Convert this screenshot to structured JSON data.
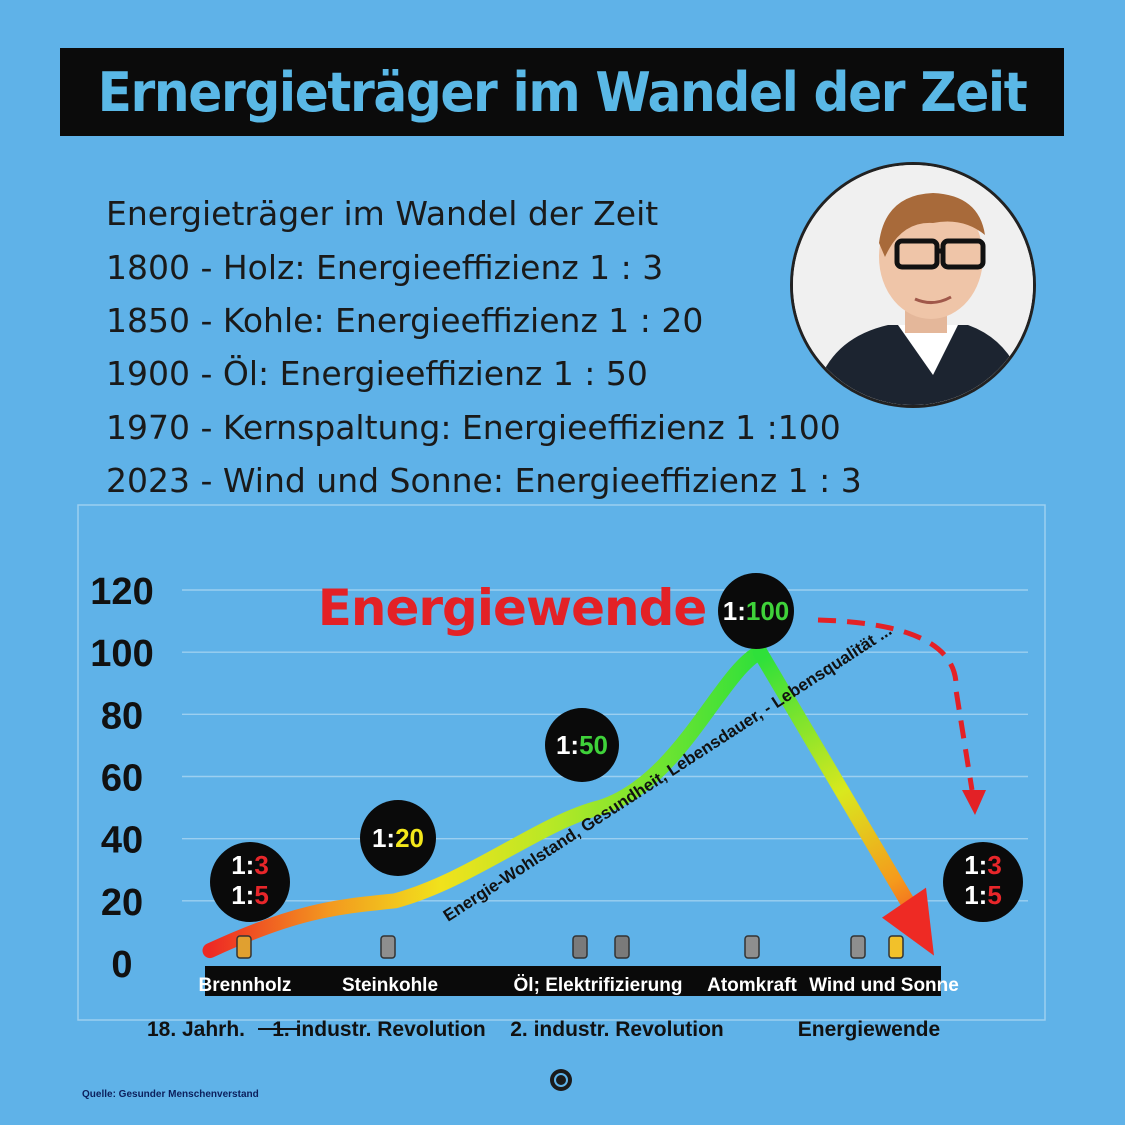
{
  "header": {
    "title": "Ernergieträger im Wandel der Zeit"
  },
  "info": {
    "lines": [
      "Energieträger im Wandel der Zeit",
      "1800 - Holz: Energieeffizienz 1 : 3",
      "1850 - Kohle: Energieeffizienz 1 : 20",
      "1900 - Öl: Energieeffizienz 1 : 50",
      "1970 - Kernspaltung: Energieeffizienz 1 :100",
      "2023 - Wind und Sonne: Energieeffizienz 1 : 3"
    ]
  },
  "chart_data": {
    "type": "line",
    "title": "Energiewende",
    "yticks": [
      "120",
      "100",
      "80",
      "60",
      "40",
      "20",
      "0"
    ],
    "ylim": [
      0,
      120
    ],
    "grid": true,
    "categories": [
      "Brennholz",
      "Steinkohle",
      "Öl; Elektrifizierung",
      "Atomkraft",
      "Wind und Sonne"
    ],
    "series": [
      {
        "values": [
          4,
          20,
          50,
          100,
          3
        ]
      }
    ],
    "line_label_rising": "Energie-Wohlstand, Gesundheit, Lebensdauer, - Lebensqualität ...",
    "badges": [
      {
        "prefix": "1:",
        "values": [
          "3",
          "5"
        ],
        "color": "#e8262a"
      },
      {
        "prefix": "1:",
        "values": [
          "20"
        ],
        "color": "#f3e71a"
      },
      {
        "prefix": "1:",
        "values": [
          "50"
        ],
        "color": "#3fd23a"
      },
      {
        "prefix": "1:",
        "values": [
          "100"
        ],
        "color": "#3fd23a"
      },
      {
        "prefix": "1:",
        "values": [
          "3",
          "5"
        ],
        "color": "#e8262a"
      }
    ],
    "eras": [
      "18. Jahrh.",
      "1. industr. Revolution",
      "2. industr. Revolution",
      "Energiewende"
    ],
    "colors": {
      "high": "#2fe03a",
      "mid": "#f1e21c",
      "low": "#ee2a24",
      "accent": "#e32126"
    }
  },
  "footer": {
    "source": "Quelle:  Gesunder Menschenverstand"
  }
}
